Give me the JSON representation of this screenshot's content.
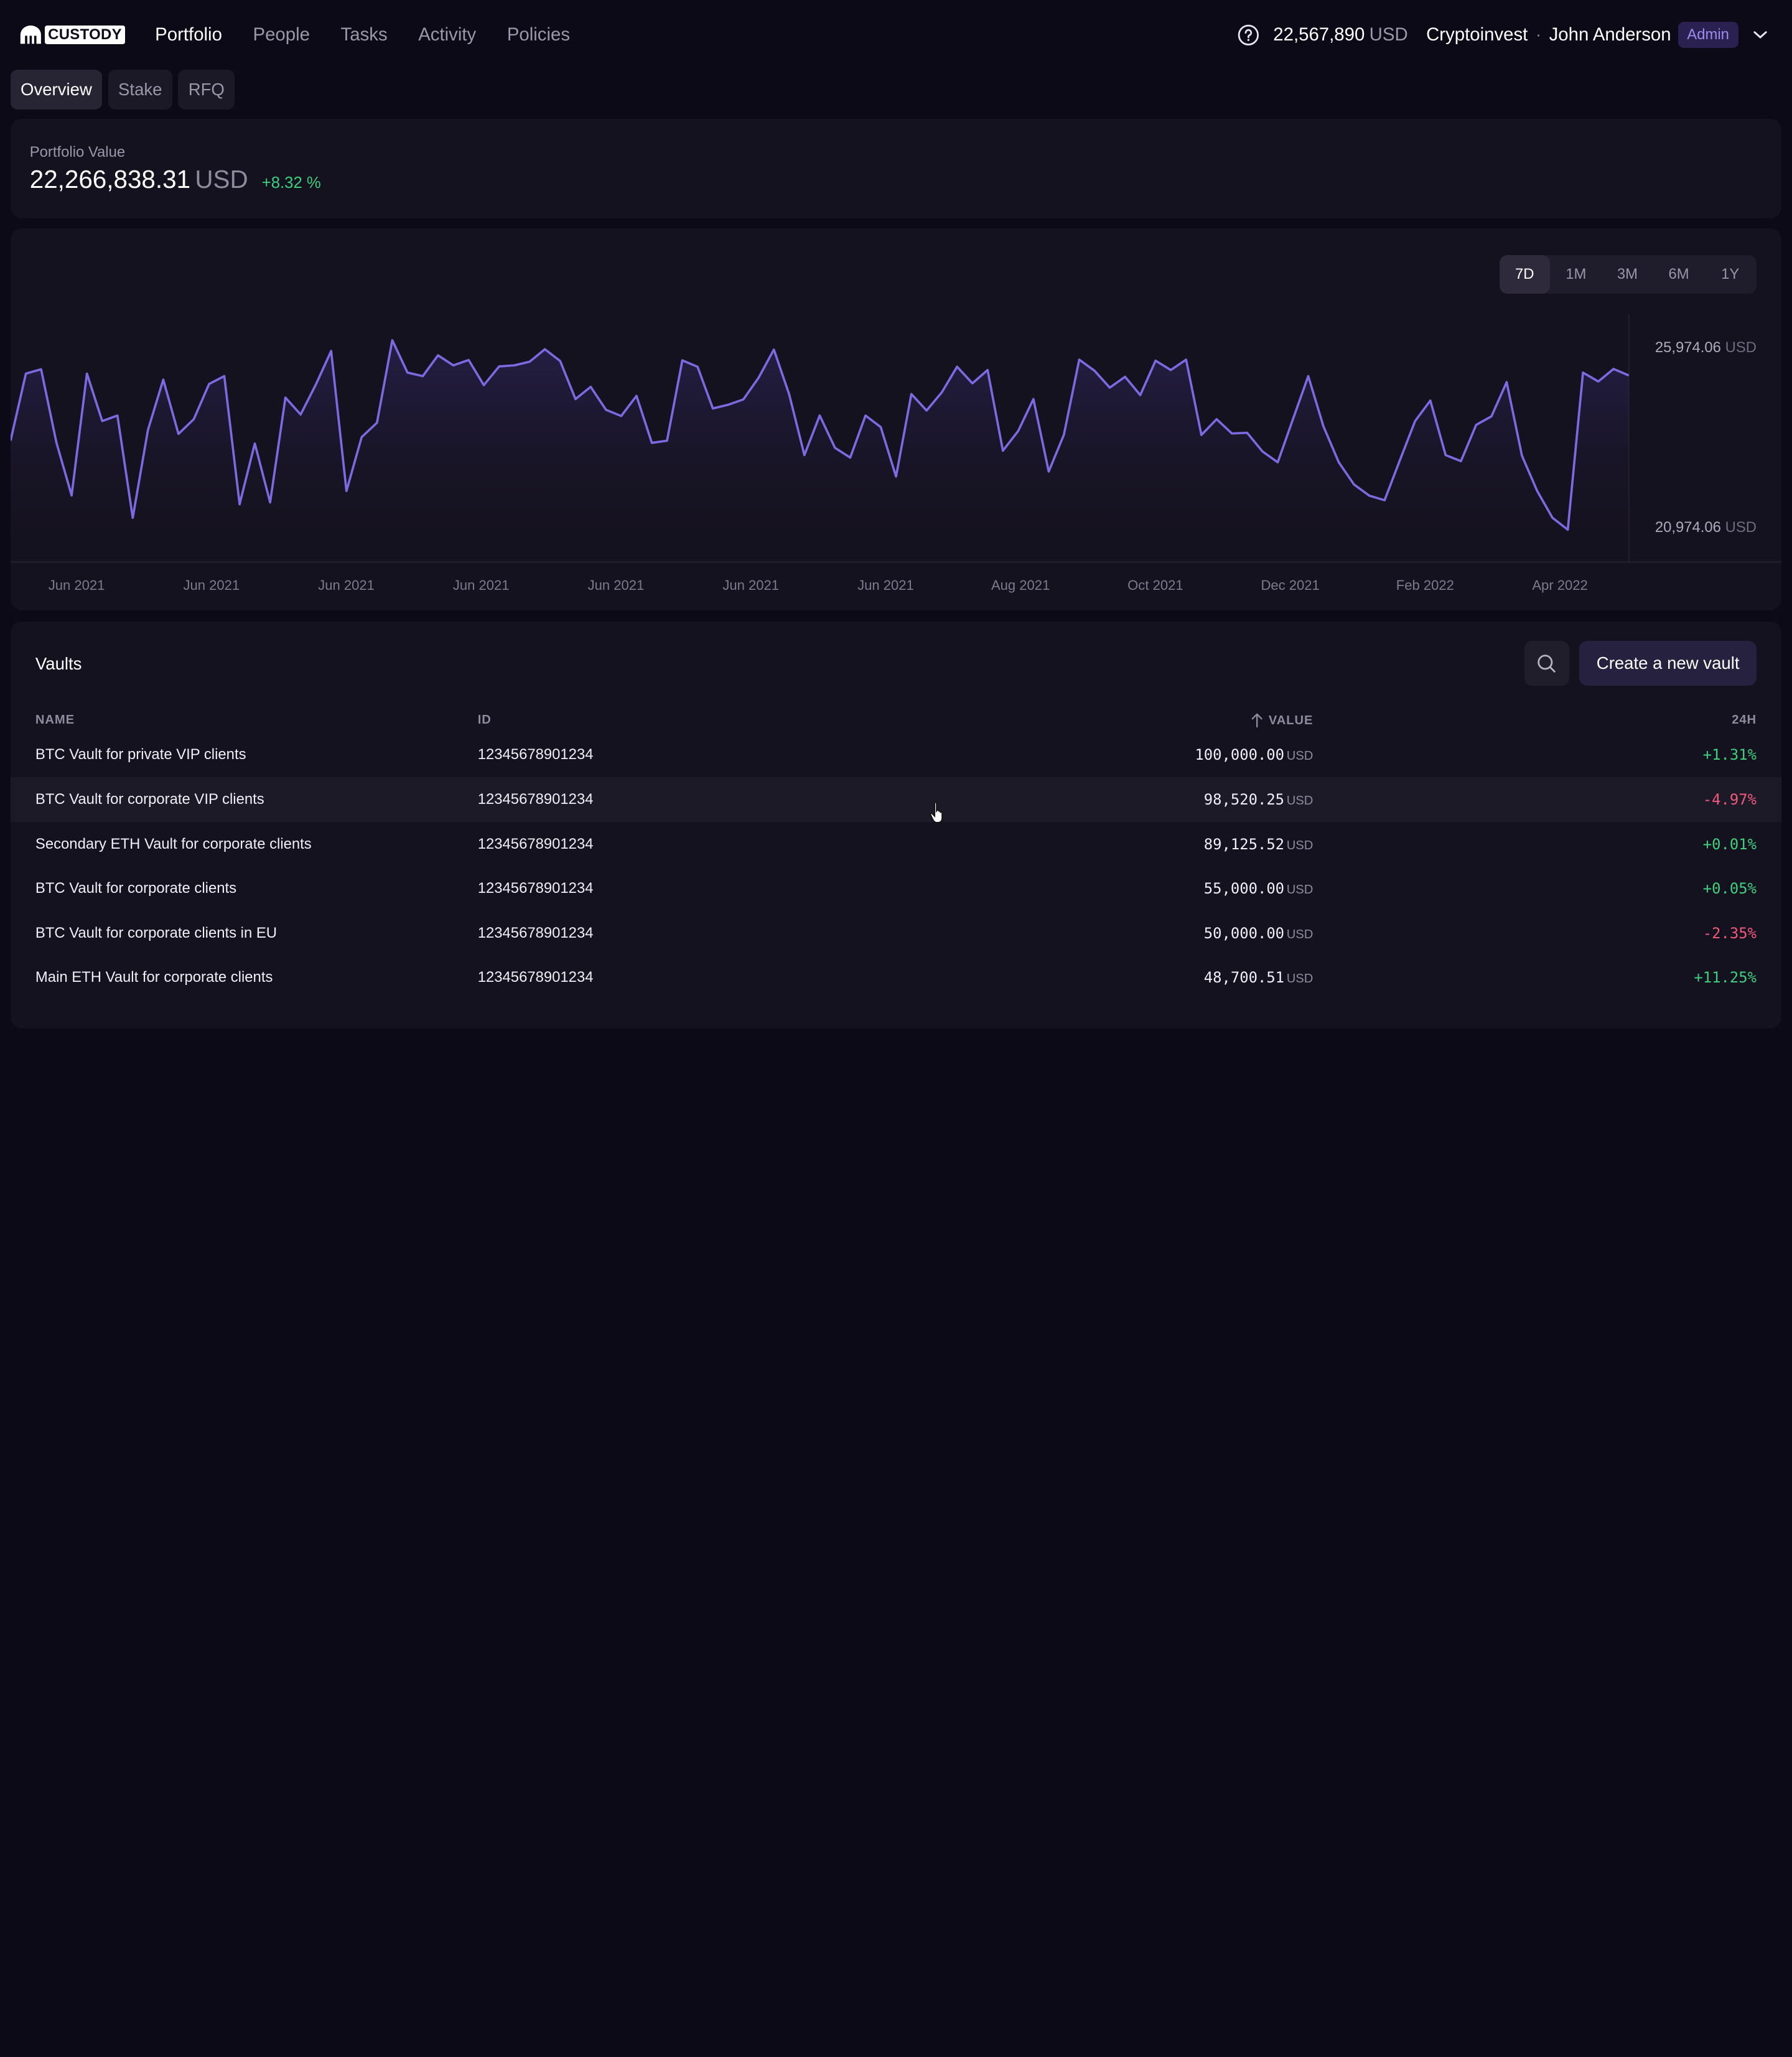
{
  "nav": {
    "logo_text": "CUSTODY",
    "links": [
      {
        "label": "Portfolio",
        "active": true
      },
      {
        "label": "People",
        "active": false
      },
      {
        "label": "Tasks",
        "active": false
      },
      {
        "label": "Activity",
        "active": false
      },
      {
        "label": "Policies",
        "active": false
      }
    ],
    "balance_value": "22,567,890",
    "balance_currency": "USD",
    "org": "Cryptoinvest",
    "separator": "·",
    "user": "John Anderson",
    "role": "Admin"
  },
  "subtabs": [
    {
      "label": "Overview",
      "active": true
    },
    {
      "label": "Stake",
      "active": false
    },
    {
      "label": "RFQ",
      "active": false
    }
  ],
  "portfolio": {
    "label": "Portfolio Value",
    "value": "22,266,838.31",
    "currency": "USD",
    "change": "+8.32 %"
  },
  "chart": {
    "ranges": [
      {
        "label": "7D",
        "active": true
      },
      {
        "label": "1M",
        "active": false
      },
      {
        "label": "3M",
        "active": false
      },
      {
        "label": "6M",
        "active": false
      },
      {
        "label": "1Y",
        "active": false
      }
    ],
    "y_high": "25,974.06",
    "y_low": "20,974.06",
    "y_unit": "USD",
    "x_labels": [
      "Jun 2021",
      "Jun 2021",
      "Jun 2021",
      "Jun 2021",
      "Jun 2021",
      "Jun 2021",
      "Jun 2021",
      "Aug 2021",
      "Oct 2021",
      "Dec 2021",
      "Feb 2022",
      "Apr 2022"
    ]
  },
  "chart_data": {
    "type": "area",
    "ylim": [
      20974.06,
      25974.06
    ],
    "line_color": "#7b6ae0",
    "values": [
      23400,
      25270,
      25390,
      23350,
      21874,
      25270,
      23950,
      24100,
      21250,
      23700,
      25100,
      23590,
      24000,
      24980,
      25200,
      21630,
      23320,
      21680,
      24600,
      24130,
      24970,
      25900,
      22000,
      23500,
      23900,
      26200,
      25300,
      25200,
      25780,
      25500,
      25650,
      24950,
      25470,
      25500,
      25600,
      25950,
      25620,
      24560,
      24900,
      24260,
      24090,
      24650,
      23340,
      23400,
      25640,
      25460,
      24300,
      24400,
      24550,
      25160,
      25940,
      24690,
      23000,
      24100,
      23200,
      22930,
      24100,
      23780,
      22400,
      24700,
      24240,
      24750,
      25460,
      25000,
      25370,
      23120,
      23670,
      24560,
      22540,
      23570,
      25660,
      25350,
      24880,
      25180,
      24670,
      25630,
      25370,
      25660,
      23560,
      24000,
      23600,
      23620,
      23100,
      22800,
      24000,
      25200,
      23800,
      22800,
      22180,
      21870,
      21740,
      22850,
      23950,
      24520,
      23000,
      22830,
      23840,
      24080,
      25030,
      22980,
      22000,
      21250,
      20920,
      25300,
      25050,
      25400,
      25220
    ]
  },
  "vaults": {
    "title": "Vaults",
    "create_label": "Create a new vault",
    "columns": {
      "name": "NAME",
      "id": "ID",
      "value": "VALUE",
      "change": "24H"
    },
    "rows": [
      {
        "name": "BTC Vault for private VIP clients",
        "id": "12345678901234",
        "value": "100,000.00",
        "unit": "USD",
        "change": "+1.31%",
        "dir": "pos"
      },
      {
        "name": "BTC Vault for corporate VIP clients",
        "id": "12345678901234",
        "value": "98,520.25",
        "unit": "USD",
        "change": "-4.97%",
        "dir": "neg"
      },
      {
        "name": "Secondary ETH Vault for corporate clients",
        "id": "12345678901234",
        "value": "89,125.52",
        "unit": "USD",
        "change": "+0.01%",
        "dir": "pos"
      },
      {
        "name": "BTC Vault for corporate clients",
        "id": "12345678901234",
        "value": "55,000.00",
        "unit": "USD",
        "change": "+0.05%",
        "dir": "pos"
      },
      {
        "name": "BTC Vault for corporate clients in EU",
        "id": "12345678901234",
        "value": "50,000.00",
        "unit": "USD",
        "change": "-2.35%",
        "dir": "neg"
      },
      {
        "name": "Main ETH Vault for corporate clients",
        "id": "12345678901234",
        "value": "48,700.51",
        "unit": "USD",
        "change": "+11.25%",
        "dir": "pos"
      }
    ]
  }
}
